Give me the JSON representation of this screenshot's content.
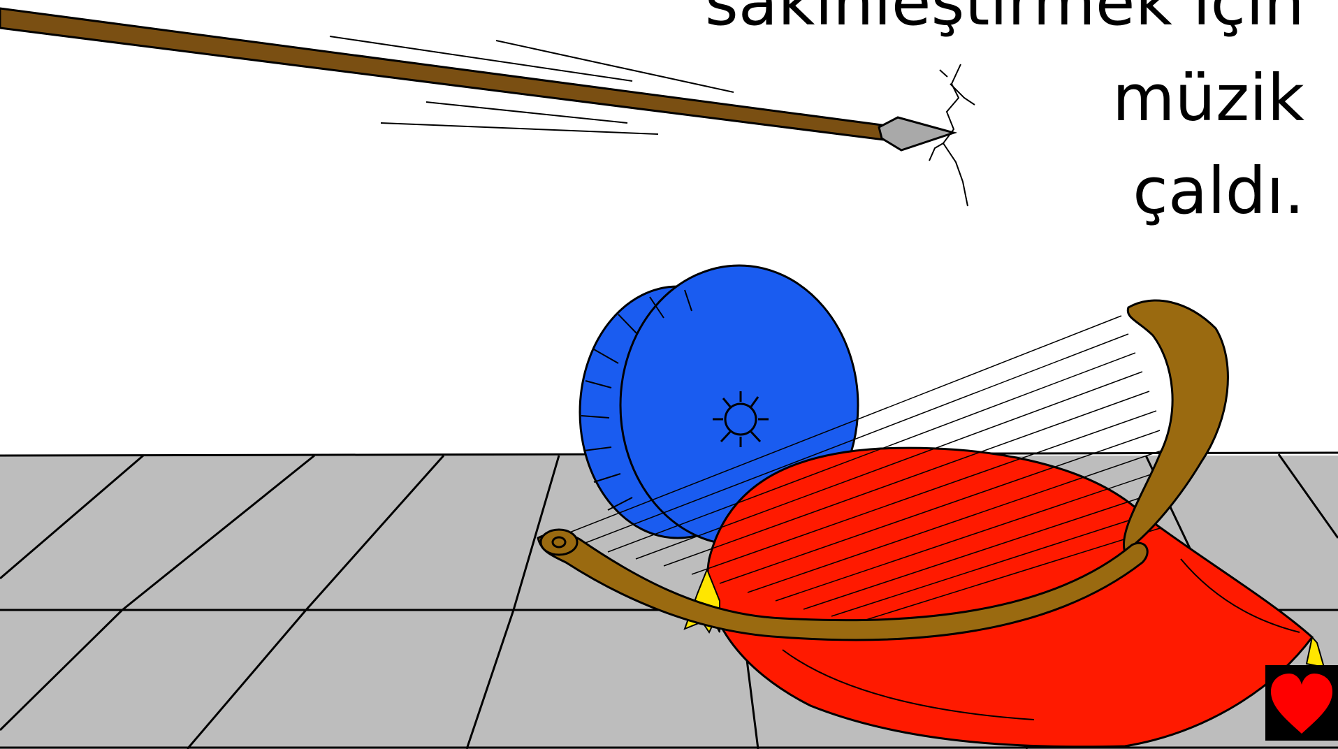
{
  "caption": {
    "line1": "sakinleştirmek için",
    "line2": "müzik",
    "line3": "çaldı."
  },
  "icons": {
    "next_button": "heart-icon"
  },
  "colors": {
    "floor": "#bdbdbd",
    "spear_shaft": "#7a4f12",
    "spear_tip": "#a9a9a9",
    "harp": "#9a6a10",
    "cushion": "#ff1a00",
    "wheel": "#1a5cf0",
    "tassel": "#ffe600",
    "heart": "#ff0000"
  }
}
